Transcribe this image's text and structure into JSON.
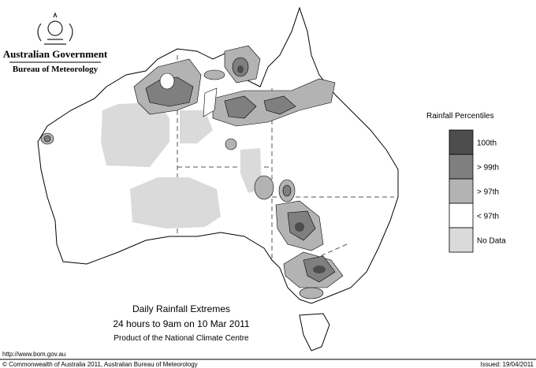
{
  "header": {
    "agency": "Australian Government",
    "bureau": "Bureau of Meteorology"
  },
  "legend": {
    "title": "Rainfall Percentiles",
    "items": [
      {
        "label": "100th",
        "color": "#4d4d4d"
      },
      {
        "label": "> 99th",
        "color": "#7f7f7f"
      },
      {
        "label": "> 97th",
        "color": "#b3b3b3"
      },
      {
        "label": "< 97th",
        "color": "#ffffff"
      },
      {
        "label": "No Data",
        "color": "#dadada"
      }
    ]
  },
  "caption": {
    "title": "Daily Rainfall Extremes",
    "subtitle": "24 hours to 9am on 10 Mar 2011",
    "note": "Product of the National Climate Centre"
  },
  "footer": {
    "url": "http://www.bom.gov.au",
    "copyright": "© Commonwealth of Australia 2011, Australian Bureau of Meteorology",
    "issued": "Issued: 19/04/2011"
  }
}
